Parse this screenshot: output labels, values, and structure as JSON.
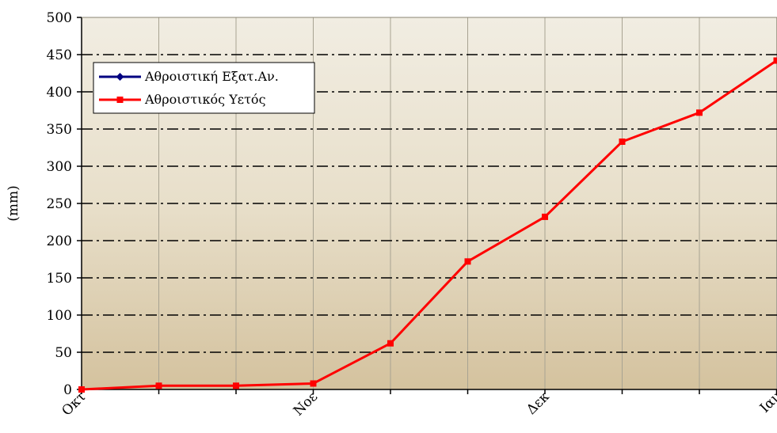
{
  "chart_data": {
    "type": "line",
    "title": "",
    "xlabel": "",
    "ylabel": "(mm)",
    "ylim": [
      0,
      500
    ],
    "yticks": [
      0,
      50,
      100,
      150,
      200,
      250,
      300,
      350,
      400,
      450,
      500
    ],
    "x_tick_labels": [
      "Οκτ",
      "Νοε",
      "Δεκ",
      "Ιαν"
    ],
    "grid": true,
    "legend_position": "top-left",
    "series": [
      {
        "name": "Αθροιστική Εξατ.Αν.",
        "color": "#000080",
        "marker": "diamond",
        "values": []
      },
      {
        "name": "Αθροιστικός Υετός",
        "color": "#ff0000",
        "marker": "square",
        "values": [
          0,
          5,
          5,
          8,
          62,
          172,
          232,
          333,
          372,
          442
        ]
      }
    ]
  }
}
